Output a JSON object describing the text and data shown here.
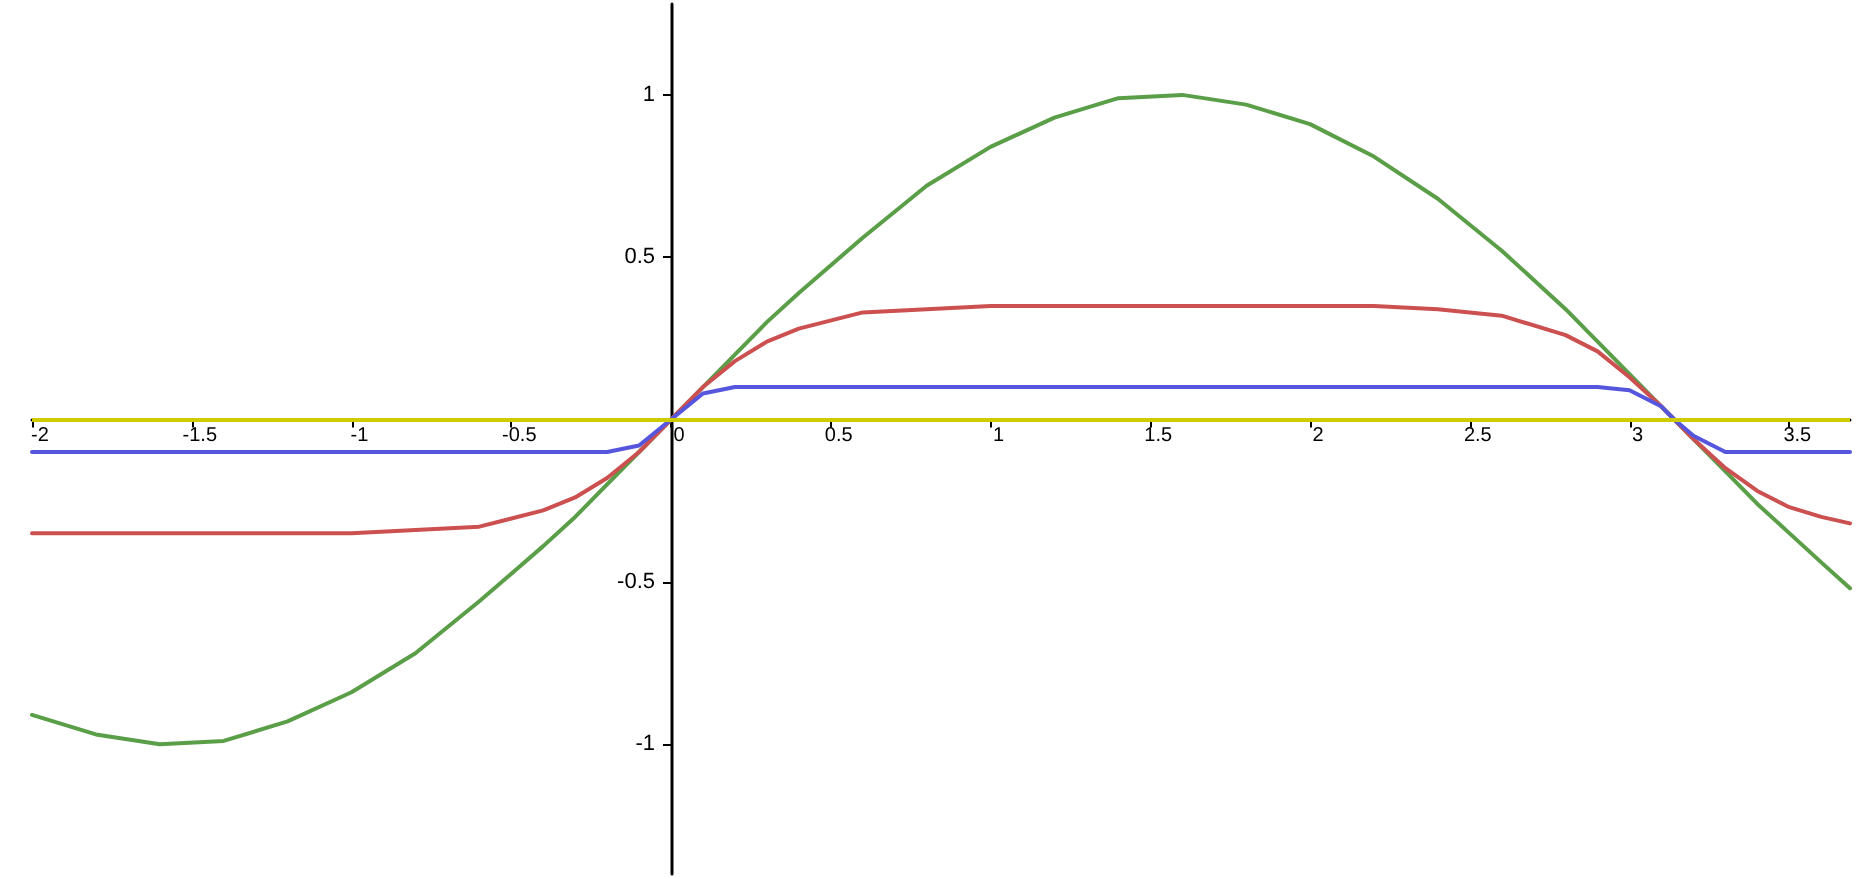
{
  "chart_data": {
    "type": "line",
    "x": [
      -2,
      -1.8,
      -1.6,
      -1.4,
      -1.2,
      -1,
      -0.8,
      -0.6,
      -0.4,
      -0.3,
      -0.2,
      -0.1,
      0,
      0.1,
      0.2,
      0.3,
      0.4,
      0.6,
      0.8,
      1,
      1.2,
      1.4,
      1.6,
      1.8,
      2,
      2.2,
      2.4,
      2.6,
      2.8,
      2.9,
      3,
      3.1,
      3.14,
      3.2,
      3.3,
      3.4,
      3.5,
      3.6,
      3.69
    ],
    "series": [
      {
        "color": "#5a9e48",
        "values": [
          -0.91,
          -0.97,
          -1.0,
          -0.99,
          -0.93,
          -0.84,
          -0.72,
          -0.56,
          -0.39,
          -0.3,
          -0.2,
          -0.1,
          0,
          0.1,
          0.2,
          0.3,
          0.39,
          0.56,
          0.72,
          0.84,
          0.93,
          0.99,
          1.0,
          0.97,
          0.91,
          0.81,
          0.68,
          0.52,
          0.34,
          0.24,
          0.14,
          0.04,
          0,
          -0.06,
          -0.16,
          -0.26,
          -0.35,
          -0.44,
          -0.52
        ]
      },
      {
        "color": "#cc5050",
        "values": [
          -0.35,
          -0.35,
          -0.35,
          -0.35,
          -0.35,
          -0.35,
          -0.34,
          -0.33,
          -0.28,
          -0.24,
          -0.18,
          -0.1,
          0,
          0.1,
          0.18,
          0.24,
          0.28,
          0.33,
          0.34,
          0.35,
          0.35,
          0.35,
          0.35,
          0.35,
          0.35,
          0.35,
          0.34,
          0.32,
          0.26,
          0.21,
          0.13,
          0.04,
          0,
          -0.06,
          -0.15,
          -0.22,
          -0.27,
          -0.3,
          -0.32
        ]
      },
      {
        "color": "#5555dd",
        "values": [
          -0.1,
          -0.1,
          -0.1,
          -0.1,
          -0.1,
          -0.1,
          -0.1,
          -0.1,
          -0.1,
          -0.1,
          -0.1,
          -0.08,
          0,
          0.08,
          0.1,
          0.1,
          0.1,
          0.1,
          0.1,
          0.1,
          0.1,
          0.1,
          0.1,
          0.1,
          0.1,
          0.1,
          0.1,
          0.1,
          0.1,
          0.1,
          0.09,
          0.04,
          0,
          -0.05,
          -0.1,
          -0.1,
          -0.1,
          -0.1,
          -0.1
        ]
      }
    ],
    "xlim": [
      -2,
      3.69
    ],
    "xticks": [
      -2,
      -1.5,
      -1,
      -0.5,
      0,
      0.5,
      1,
      1.5,
      2,
      2.5,
      3,
      3.5
    ],
    "ylim": [
      -1.4,
      1.28
    ],
    "yticks": [
      -1,
      -0.5,
      0.5,
      1
    ],
    "ref_lines": [
      {
        "axis": "y",
        "value": 0,
        "color": "#cccc00"
      }
    ],
    "grid": false,
    "marker": "none",
    "line_style": "solid"
  }
}
